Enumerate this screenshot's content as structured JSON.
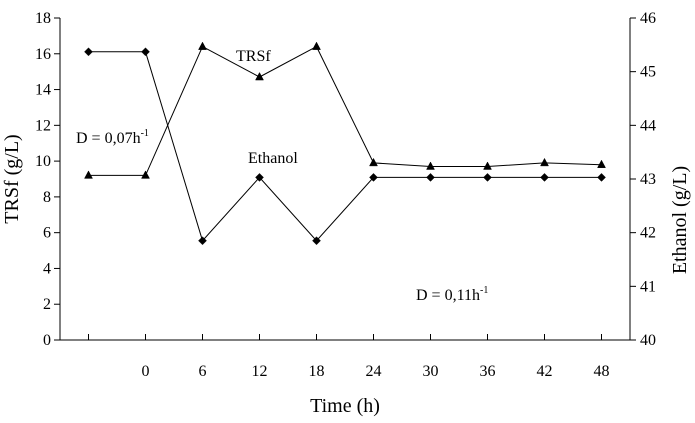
{
  "chart_data": {
    "type": "line",
    "x_tick_labels": [
      "0",
      "6",
      "12",
      "18",
      "24",
      "30",
      "36",
      "42",
      "48"
    ],
    "xlabel": "Time (h)",
    "ylabel": "TRSf (g/L)",
    "y2label": "Ethanol (g/L)",
    "ylim": [
      0,
      18
    ],
    "y_ticks": [
      0,
      2,
      4,
      6,
      8,
      10,
      12,
      14,
      16,
      18
    ],
    "y2lim": [
      40,
      46
    ],
    "y2_ticks": [
      40,
      41,
      42,
      43,
      44,
      45,
      46
    ],
    "x": [
      -6,
      0,
      6,
      12,
      18,
      24,
      30,
      36,
      42,
      48
    ],
    "xlim": [
      -9,
      51
    ],
    "series": [
      {
        "name": "TRSf",
        "axis": "left",
        "marker": "triangle",
        "values": [
          9.2,
          9.2,
          16.4,
          14.7,
          16.4,
          9.9,
          9.7,
          9.7,
          9.9,
          9.8
        ]
      },
      {
        "name": "Ethanol",
        "axis": "right",
        "marker": "diamond",
        "values": [
          45.37,
          45.37,
          41.85,
          43.03,
          41.85,
          43.03,
          43.03,
          43.03,
          43.03,
          43.03
        ]
      }
    ],
    "annotations": [
      {
        "id": "d1",
        "base": "D = 0,07h",
        "sup": "-1"
      },
      {
        "id": "d2",
        "base": "D = 0,11h",
        "sup": "-1"
      }
    ],
    "grid": false,
    "legend": "inline labels"
  }
}
